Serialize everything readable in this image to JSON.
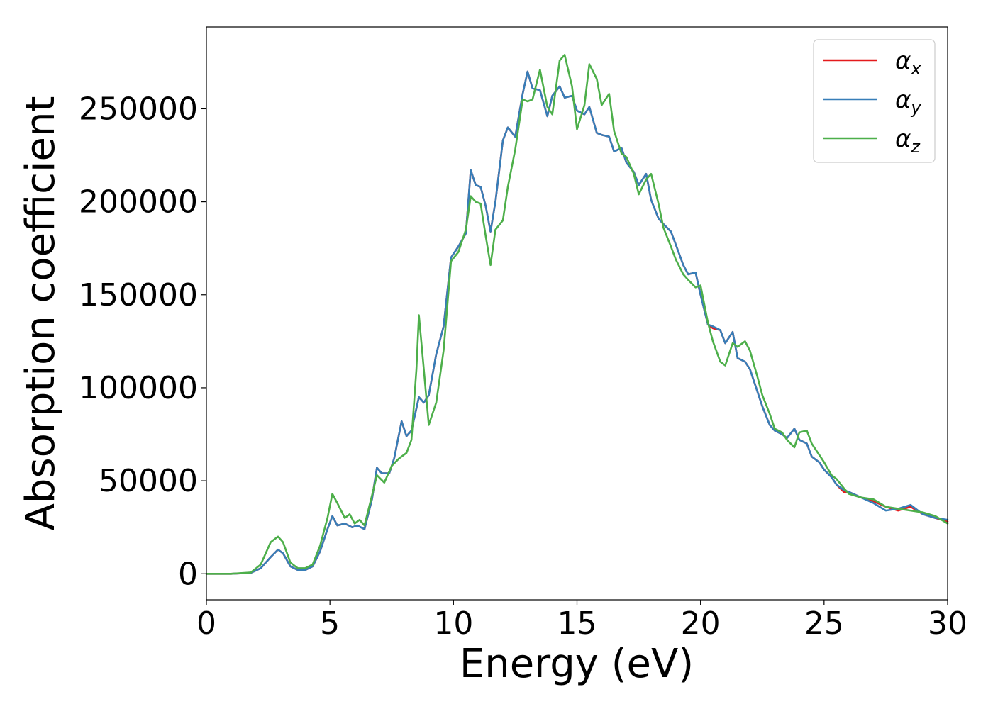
{
  "chart_data": {
    "type": "line",
    "title": "",
    "xlabel": "Energy (eV)",
    "ylabel": "Absorption coefficient",
    "xlim": [
      0,
      30
    ],
    "ylim": [
      -14000,
      294000
    ],
    "xticks": [
      0,
      5,
      10,
      15,
      20,
      25,
      30
    ],
    "xtick_labels": [
      "0",
      "5",
      "10",
      "15",
      "20",
      "25",
      "30"
    ],
    "yticks": [
      0,
      50000,
      100000,
      150000,
      200000,
      250000
    ],
    "ytick_labels": [
      "0",
      "50000",
      "100000",
      "150000",
      "200000",
      "250000"
    ],
    "grid": false,
    "legend_position": "top-right",
    "series": [
      {
        "name": "α_x",
        "legend_symbol": "α",
        "legend_subscript": "x",
        "color": "#e41a1c",
        "x": [
          0,
          1,
          1.8,
          2.2,
          2.6,
          2.9,
          3.1,
          3.4,
          3.7,
          4.0,
          4.3,
          4.6,
          4.9,
          5.1,
          5.3,
          5.6,
          5.9,
          6.1,
          6.4,
          6.7,
          6.9,
          7.1,
          7.4,
          7.6,
          7.9,
          8.1,
          8.3,
          8.6,
          8.8,
          9.0,
          9.3,
          9.6,
          9.9,
          10.2,
          10.5,
          10.7,
          10.9,
          11.1,
          11.3,
          11.5,
          11.7,
          12.0,
          12.2,
          12.5,
          12.8,
          13.0,
          13.2,
          13.5,
          13.8,
          14.0,
          14.3,
          14.5,
          14.8,
          15.0,
          15.3,
          15.5,
          15.8,
          16.0,
          16.3,
          16.5,
          16.8,
          17.0,
          17.3,
          17.5,
          17.8,
          18.0,
          18.3,
          18.5,
          18.8,
          19.0,
          19.3,
          19.5,
          19.8,
          20.0,
          20.3,
          20.5,
          20.8,
          21.0,
          21.3,
          21.5,
          21.8,
          22.0,
          22.3,
          22.5,
          22.8,
          23.0,
          23.3,
          23.5,
          23.8,
          24.0,
          24.3,
          24.5,
          24.8,
          25.0,
          25.3,
          25.5,
          25.8,
          26.0,
          26.5,
          27.0,
          27.5,
          28.0,
          28.5,
          29.0,
          29.5,
          30.0
        ],
        "y": [
          0,
          0,
          500,
          3000,
          9000,
          13000,
          11000,
          4000,
          2000,
          2000,
          4000,
          12000,
          24000,
          31000,
          26000,
          27000,
          25000,
          26000,
          24000,
          40000,
          57000,
          54000,
          54000,
          62000,
          82000,
          74000,
          77000,
          95000,
          92000,
          96000,
          118000,
          133000,
          170000,
          176000,
          183000,
          217000,
          209000,
          208000,
          198000,
          184000,
          200000,
          233000,
          240000,
          235000,
          258000,
          270000,
          261000,
          260000,
          246000,
          257000,
          262000,
          256000,
          257000,
          249000,
          247000,
          251000,
          237000,
          236000,
          235000,
          227000,
          229000,
          221000,
          216000,
          209000,
          215000,
          201000,
          191000,
          188000,
          184000,
          177000,
          166000,
          161000,
          162000,
          150000,
          134000,
          132000,
          131000,
          124000,
          130000,
          116000,
          114000,
          110000,
          98000,
          90000,
          80000,
          77000,
          75000,
          73000,
          78000,
          72000,
          70000,
          63000,
          60000,
          56000,
          52000,
          48000,
          44000,
          44000,
          41000,
          39000,
          36000,
          34000,
          36000,
          32000,
          30000,
          28000
        ]
      },
      {
        "name": "α_y",
        "legend_symbol": "α",
        "legend_subscript": "y",
        "color": "#377eb8",
        "x": [
          0,
          1,
          1.8,
          2.2,
          2.6,
          2.9,
          3.1,
          3.4,
          3.7,
          4.0,
          4.3,
          4.6,
          4.9,
          5.1,
          5.3,
          5.6,
          5.9,
          6.1,
          6.4,
          6.7,
          6.9,
          7.1,
          7.4,
          7.6,
          7.9,
          8.1,
          8.3,
          8.6,
          8.8,
          9.0,
          9.3,
          9.6,
          9.9,
          10.2,
          10.5,
          10.7,
          10.9,
          11.1,
          11.3,
          11.5,
          11.7,
          12.0,
          12.2,
          12.5,
          12.8,
          13.0,
          13.2,
          13.5,
          13.8,
          14.0,
          14.3,
          14.5,
          14.8,
          15.0,
          15.3,
          15.5,
          15.8,
          16.0,
          16.3,
          16.5,
          16.8,
          17.0,
          17.3,
          17.5,
          17.8,
          18.0,
          18.3,
          18.5,
          18.8,
          19.0,
          19.3,
          19.5,
          19.8,
          20.0,
          20.3,
          20.5,
          20.8,
          21.0,
          21.3,
          21.5,
          21.8,
          22.0,
          22.3,
          22.5,
          22.8,
          23.0,
          23.3,
          23.5,
          23.8,
          24.0,
          24.3,
          24.5,
          24.8,
          25.0,
          25.3,
          25.5,
          25.8,
          26.0,
          26.5,
          27.0,
          27.5,
          28.0,
          28.5,
          29.0,
          29.5,
          30.0
        ],
        "y": [
          0,
          0,
          500,
          3000,
          9000,
          13000,
          11000,
          4000,
          2000,
          2000,
          4000,
          12000,
          24000,
          31000,
          26000,
          27000,
          25000,
          26000,
          24000,
          40000,
          57000,
          54000,
          54000,
          62000,
          82000,
          74000,
          77000,
          95000,
          92000,
          96000,
          118000,
          133000,
          170000,
          176000,
          183000,
          217000,
          209000,
          208000,
          198000,
          184000,
          200000,
          233000,
          240000,
          235000,
          258000,
          270000,
          261000,
          260000,
          246000,
          257000,
          262000,
          256000,
          257000,
          249000,
          247000,
          251000,
          237000,
          236000,
          235000,
          227000,
          229000,
          221000,
          216000,
          209000,
          215000,
          201000,
          191000,
          188000,
          184000,
          177000,
          166000,
          161000,
          162000,
          150000,
          134000,
          133000,
          131000,
          124000,
          130000,
          116000,
          114000,
          110000,
          98000,
          90000,
          80000,
          77000,
          75000,
          73000,
          78000,
          72000,
          70000,
          63000,
          60000,
          56000,
          52000,
          48000,
          45000,
          44000,
          41000,
          38000,
          34000,
          35000,
          37000,
          32000,
          30000,
          29000
        ]
      },
      {
        "name": "α_z",
        "legend_symbol": "α",
        "legend_subscript": "z",
        "color": "#4daf4a",
        "x": [
          0,
          1,
          1.8,
          2.2,
          2.6,
          2.9,
          3.1,
          3.4,
          3.7,
          4.0,
          4.3,
          4.6,
          4.9,
          5.1,
          5.3,
          5.6,
          5.8,
          6.0,
          6.2,
          6.4,
          6.7,
          6.9,
          7.2,
          7.5,
          7.8,
          8.1,
          8.3,
          8.5,
          8.6,
          8.8,
          9.0,
          9.3,
          9.6,
          9.9,
          10.2,
          10.5,
          10.7,
          10.9,
          11.1,
          11.3,
          11.5,
          11.7,
          12.0,
          12.2,
          12.5,
          12.8,
          13.0,
          13.2,
          13.5,
          13.8,
          14.0,
          14.3,
          14.5,
          14.8,
          15.0,
          15.3,
          15.5,
          15.8,
          16.0,
          16.3,
          16.5,
          16.8,
          17.0,
          17.3,
          17.5,
          17.8,
          18.0,
          18.3,
          18.5,
          18.8,
          19.0,
          19.3,
          19.5,
          19.8,
          20.0,
          20.3,
          20.5,
          20.8,
          21.0,
          21.3,
          21.5,
          21.8,
          22.0,
          22.3,
          22.5,
          22.8,
          23.0,
          23.3,
          23.5,
          23.8,
          24.0,
          24.3,
          24.5,
          24.8,
          25.0,
          25.3,
          25.5,
          25.8,
          26.0,
          26.5,
          27.0,
          27.5,
          28.0,
          28.5,
          29.0,
          29.5,
          30.0
        ],
        "y": [
          0,
          0,
          700,
          5000,
          17000,
          20000,
          17000,
          6000,
          3000,
          3000,
          5000,
          15000,
          30000,
          43000,
          38000,
          30000,
          32000,
          27000,
          29000,
          26000,
          42000,
          53000,
          49000,
          58000,
          62000,
          65000,
          72000,
          110000,
          139000,
          110000,
          80000,
          92000,
          120000,
          168000,
          173000,
          185000,
          203000,
          200000,
          199000,
          182000,
          166000,
          185000,
          190000,
          208000,
          228000,
          255000,
          254000,
          255000,
          271000,
          251000,
          247000,
          276000,
          279000,
          262000,
          239000,
          252000,
          274000,
          266000,
          252000,
          258000,
          238000,
          226000,
          224000,
          215000,
          204000,
          212000,
          215000,
          199000,
          186000,
          176000,
          169000,
          161000,
          158000,
          154000,
          155000,
          135000,
          125000,
          114000,
          112000,
          124000,
          122000,
          125000,
          120000,
          106000,
          96000,
          86000,
          78000,
          76000,
          72000,
          68000,
          76000,
          77000,
          70000,
          64000,
          60000,
          53000,
          51000,
          46000,
          43000,
          41000,
          40000,
          36000,
          35000,
          34000,
          33000,
          31000,
          27000
        ]
      }
    ]
  }
}
